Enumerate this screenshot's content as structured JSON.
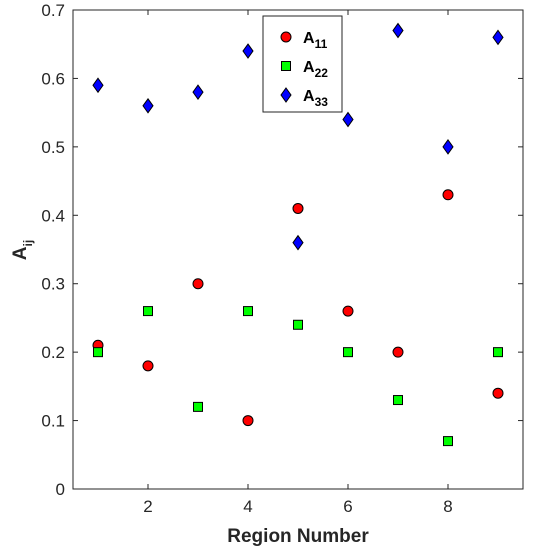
{
  "chart_data": {
    "type": "scatter",
    "xlabel": "Region Number",
    "ylabel": {
      "main": "A",
      "sub": "ij"
    },
    "xlim": [
      0.5,
      9.5
    ],
    "ylim": [
      0,
      0.7
    ],
    "x_ticks": [
      2,
      4,
      6,
      8
    ],
    "x_tick_labels": [
      "2",
      "4",
      "6",
      "8"
    ],
    "y_ticks": [
      0,
      0.1,
      0.2,
      0.3,
      0.4,
      0.5,
      0.6,
      0.7
    ],
    "y_tick_labels": [
      "0",
      "0.1",
      "0.2",
      "0.3",
      "0.4",
      "0.5",
      "0.6",
      "0.7"
    ],
    "grid": false,
    "legend_position": "top-center",
    "series": [
      {
        "name": "A11",
        "label_main": "A",
        "label_sub": "11",
        "marker": "circle",
        "color": "#ff0000",
        "x": [
          1,
          2,
          3,
          4,
          5,
          6,
          7,
          8,
          9
        ],
        "values": [
          0.21,
          0.18,
          0.3,
          0.1,
          0.41,
          0.26,
          0.2,
          0.43,
          0.14
        ]
      },
      {
        "name": "A22",
        "label_main": "A",
        "label_sub": "22",
        "marker": "square",
        "color": "#00ff00",
        "x": [
          1,
          2,
          3,
          4,
          5,
          6,
          7,
          8,
          9
        ],
        "values": [
          0.2,
          0.26,
          0.12,
          0.26,
          0.24,
          0.2,
          0.13,
          0.07,
          0.2
        ]
      },
      {
        "name": "A33",
        "label_main": "A",
        "label_sub": "33",
        "marker": "diamond",
        "color": "#0000ff",
        "x": [
          1,
          2,
          3,
          4,
          5,
          6,
          7,
          8,
          9
        ],
        "values": [
          0.59,
          0.56,
          0.58,
          0.64,
          0.36,
          0.54,
          0.67,
          0.5,
          0.66
        ]
      }
    ]
  }
}
